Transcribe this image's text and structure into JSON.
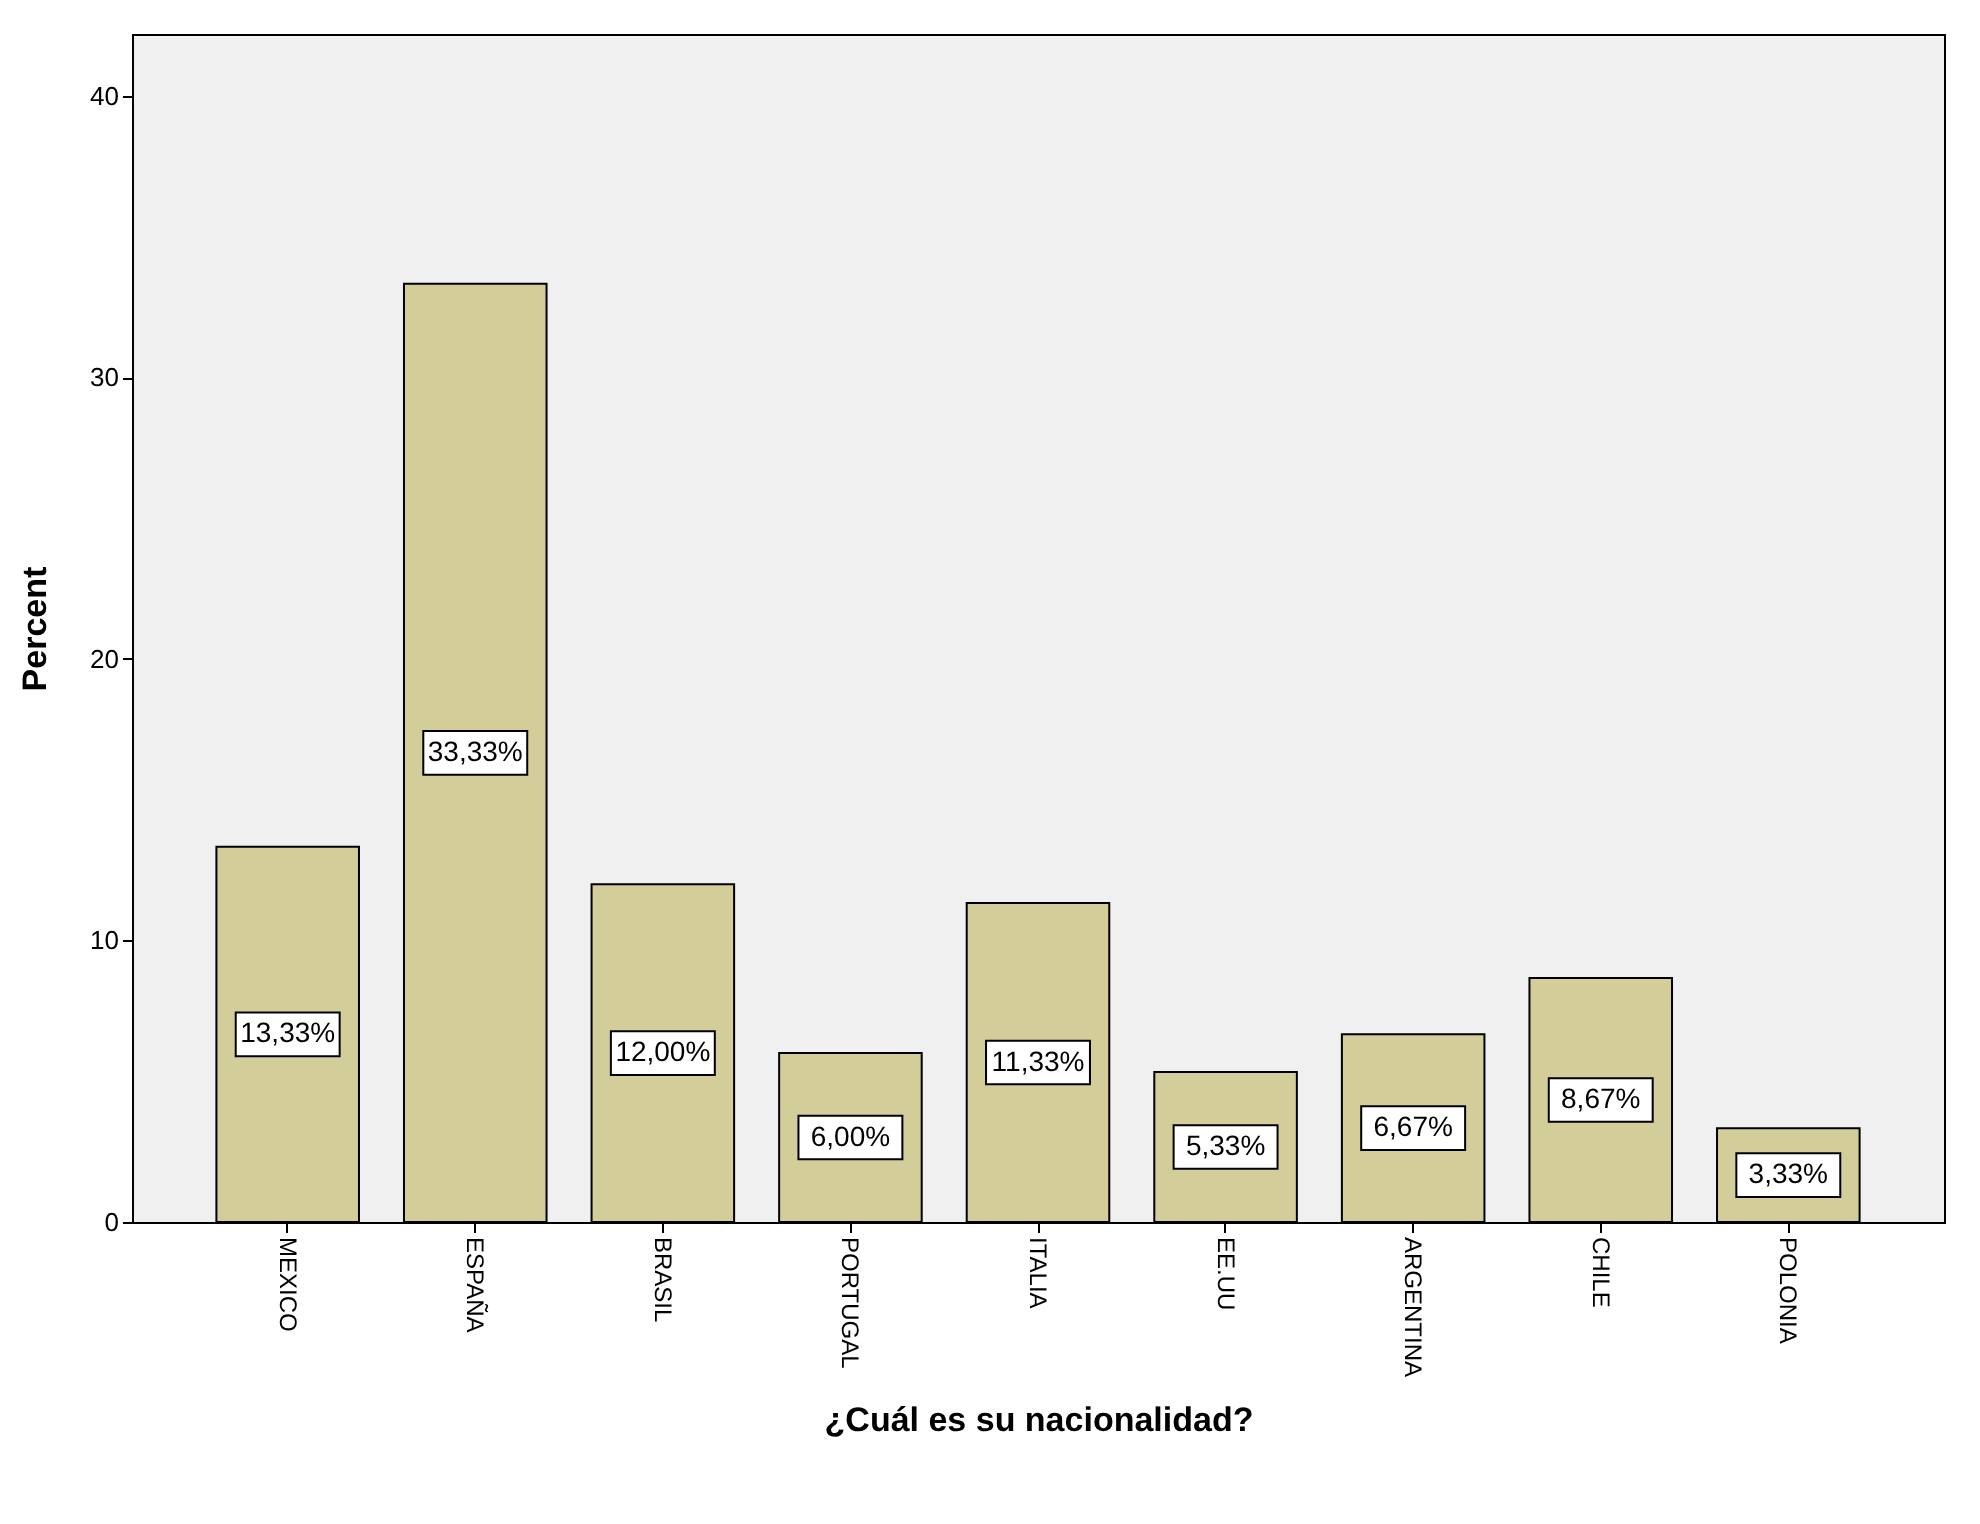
{
  "chart_data": {
    "type": "bar",
    "xlabel": "¿Cuál es su nacionalidad?",
    "ylabel": "Percent",
    "categories": [
      "MEXICO",
      "ESPAÑA",
      "BRASIL",
      "PORTUGAL",
      "ITALIA",
      "EE.UU",
      "ARGENTINA",
      "CHILE",
      "POLONIA"
    ],
    "values": [
      13.33,
      33.33,
      12.0,
      6.0,
      11.33,
      5.33,
      6.67,
      8.67,
      3.33
    ],
    "value_labels": [
      "13,33%",
      "33,33%",
      "12,00%",
      "6,00%",
      "11,33%",
      "5,33%",
      "6,67%",
      "8,67%",
      "3,33%"
    ],
    "color": "#d3ce99",
    "ylim": [
      0,
      42.2
    ],
    "yticks": [
      0,
      10,
      20,
      30,
      40
    ],
    "grid": false
  }
}
